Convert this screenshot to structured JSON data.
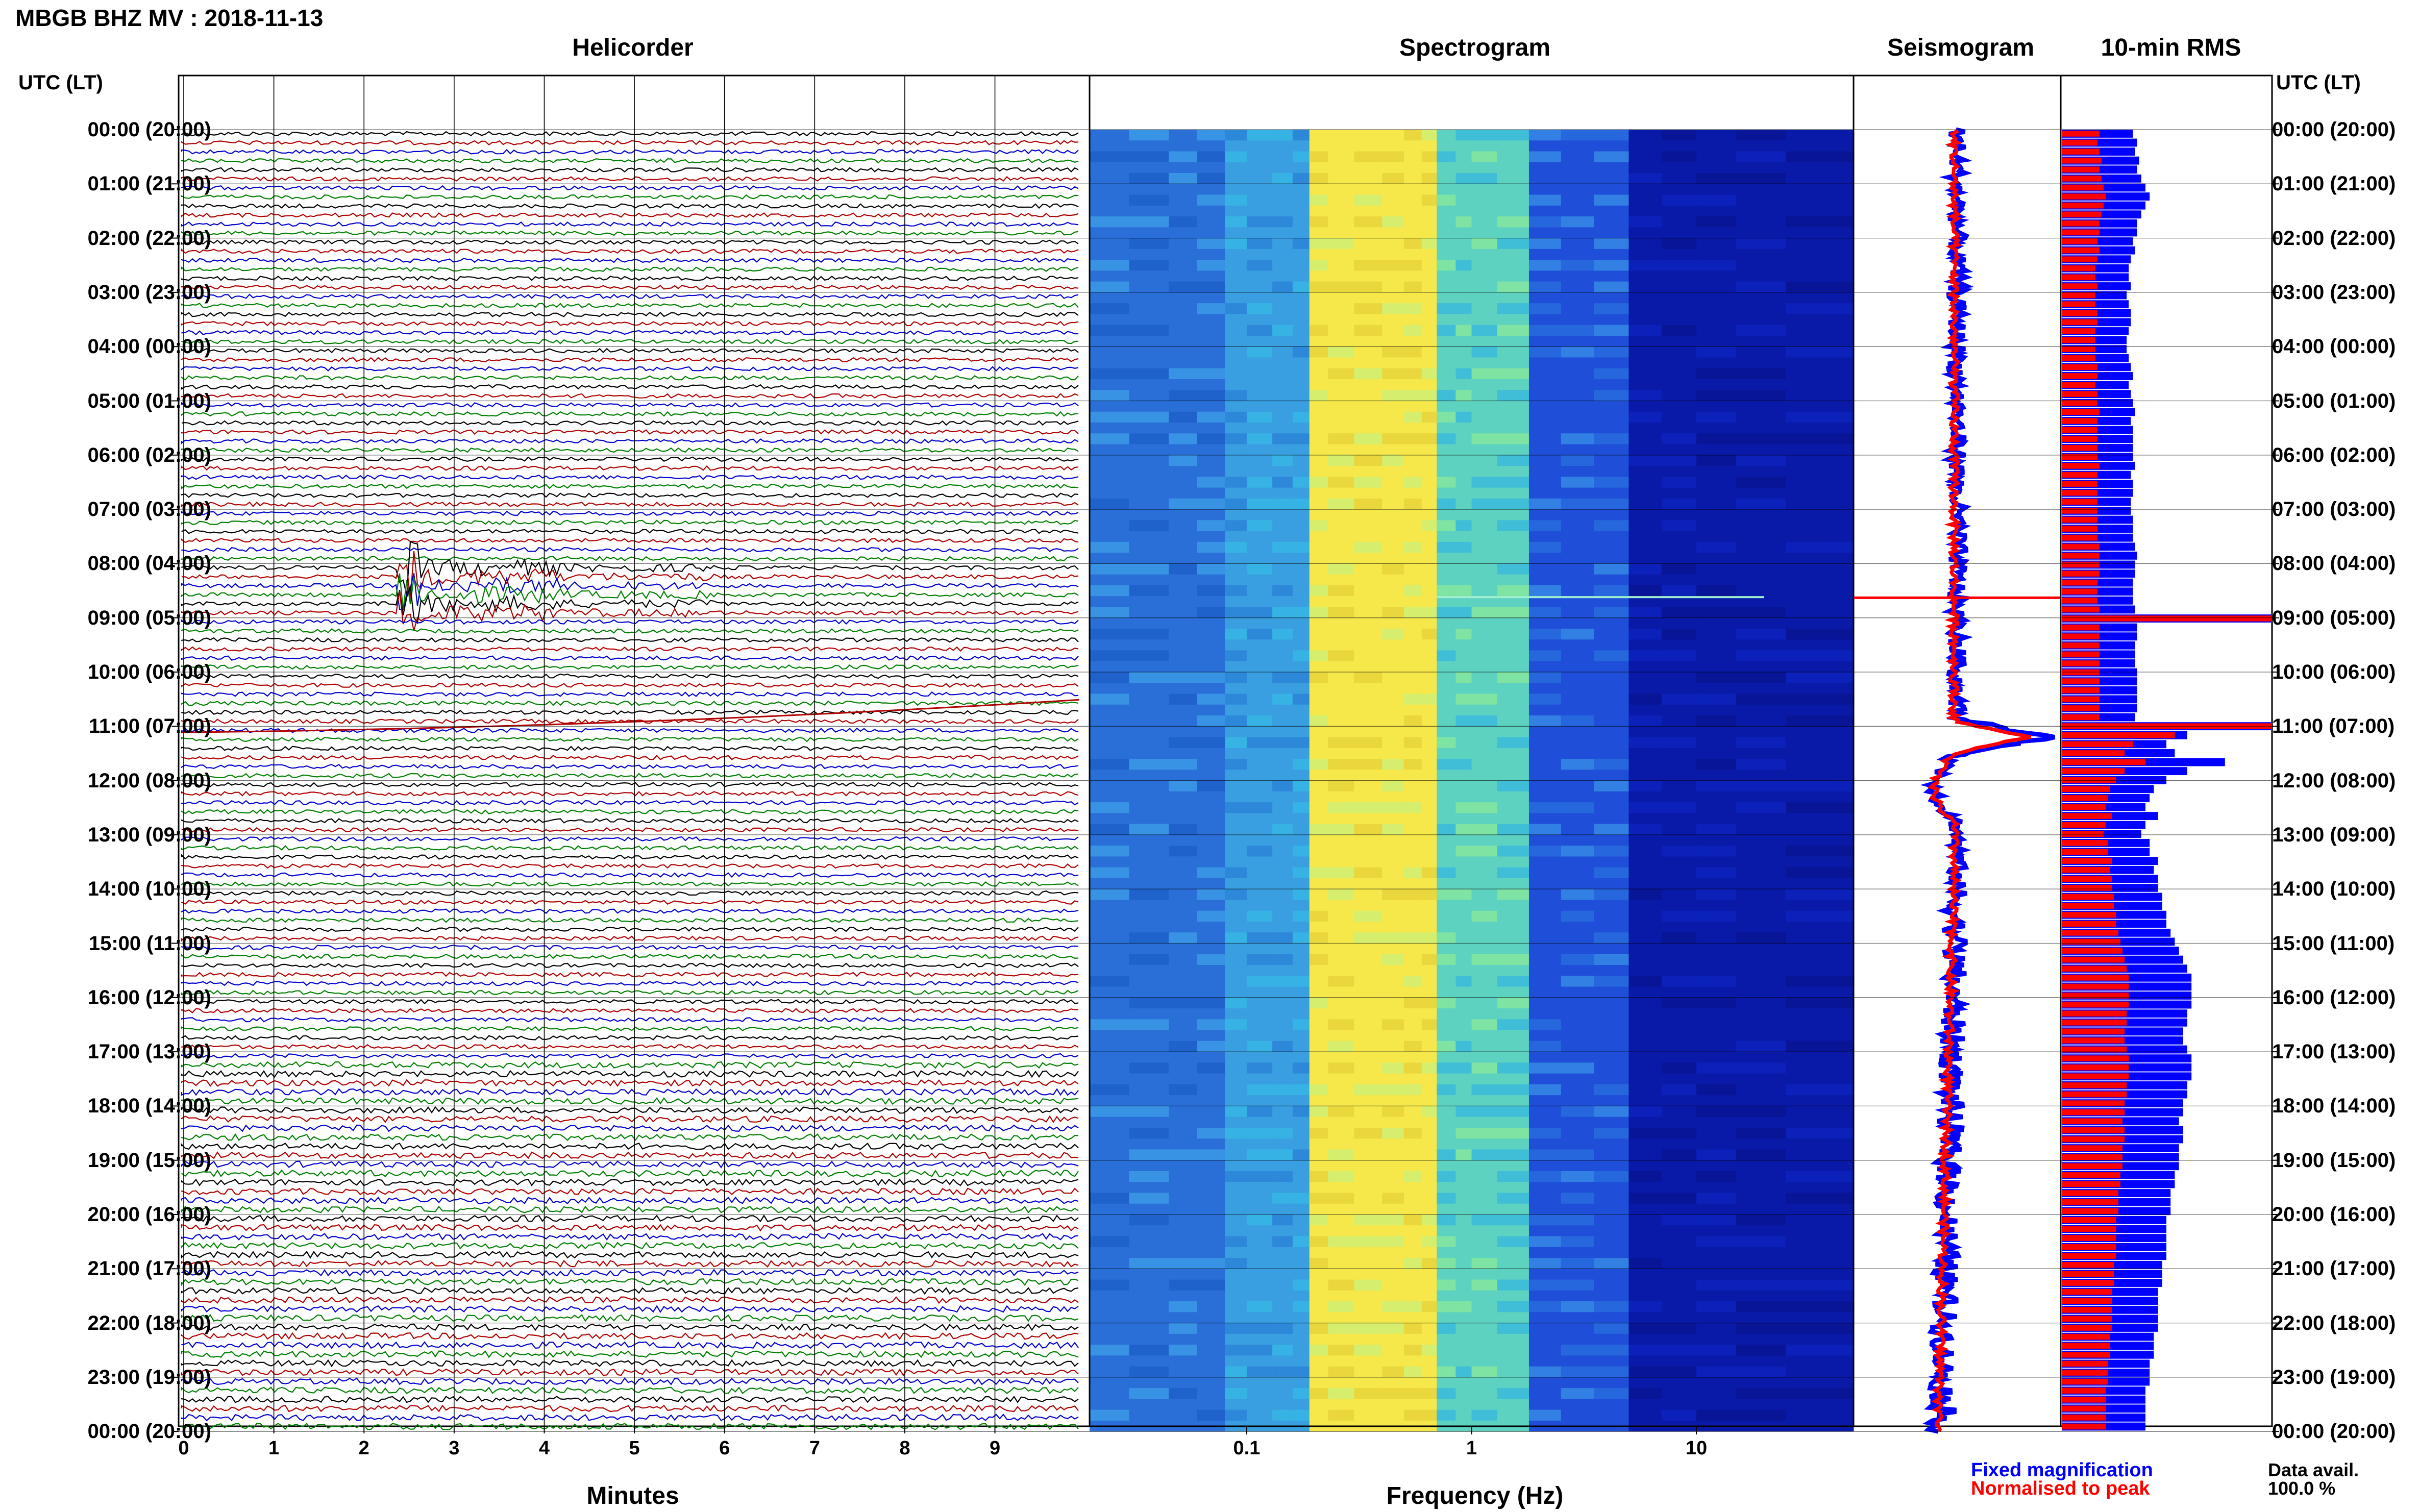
{
  "header": {
    "title": "MBGB BHZ MV : 2018-11-13"
  },
  "panels": {
    "helicorder": "Helicorder",
    "spectrogram": "Spectrogram",
    "seismogram": "Seismogram",
    "rms": "10-min RMS"
  },
  "axis": {
    "utc_label_left": "UTC (LT)",
    "utc_label_right": "UTC (LT)",
    "hours": [
      "00:00 (20:00)",
      "01:00 (21:00)",
      "02:00 (22:00)",
      "03:00 (23:00)",
      "04:00 (00:00)",
      "05:00 (01:00)",
      "06:00 (02:00)",
      "07:00 (03:00)",
      "08:00 (04:00)",
      "09:00 (05:00)",
      "10:00 (06:00)",
      "11:00 (07:00)",
      "12:00 (08:00)",
      "13:00 (09:00)",
      "14:00 (10:00)",
      "15:00 (11:00)",
      "16:00 (12:00)",
      "17:00 (13:00)",
      "18:00 (14:00)",
      "19:00 (15:00)",
      "20:00 (16:00)",
      "21:00 (17:00)",
      "22:00 (18:00)",
      "23:00 (19:00)",
      "00:00 (20:00)"
    ],
    "minutes_label": "Minutes",
    "minute_ticks": [
      "0",
      "1",
      "2",
      "3",
      "4",
      "5",
      "6",
      "7",
      "8",
      "9"
    ],
    "frequency_label": "Frequency (Hz)",
    "freq_ticks": [
      "0.1",
      "1",
      "10"
    ]
  },
  "legend": {
    "fixed": "Fixed magnification",
    "normalised": "Normalised to peak",
    "data_avail": "Data avail.",
    "data_avail_value": "100.0 %"
  },
  "colors": {
    "trace_cycle": [
      "#000000",
      "#b00000",
      "#0000d0",
      "#008000"
    ],
    "fixed": "#0000ff",
    "normalised": "#ff0000",
    "spectrogram_low": "#00008b",
    "spectrogram_high": "#ffff00"
  },
  "chart_data": {
    "type": "helicorder",
    "hours_utc": [
      0,
      1,
      2,
      3,
      4,
      5,
      6,
      7,
      8,
      9,
      10,
      11,
      12,
      13,
      14,
      15,
      16,
      17,
      18,
      19,
      20,
      21,
      22,
      23,
      24
    ],
    "minutes_range": [
      0,
      10
    ],
    "frequency_range_hz": [
      0.02,
      50
    ],
    "frequency_scale": "log",
    "events": [
      {
        "name": "regional earthquake",
        "hour": 8.0,
        "minute": 2.5
      },
      {
        "name": "long-period drift",
        "hour": 10.9,
        "minute": 0
      }
    ],
    "rms_fixed": [
      34,
      36,
      35,
      37,
      36,
      38,
      40,
      42,
      40,
      38,
      36,
      36,
      34,
      35,
      33,
      32,
      32,
      33,
      31,
      32,
      33,
      33,
      32,
      31,
      31,
      32,
      33,
      34,
      32,
      33,
      34,
      35,
      33,
      34,
      34,
      34,
      34,
      35,
      33,
      34,
      34,
      33,
      33,
      34,
      34,
      34,
      35,
      36,
      35,
      35,
      34,
      34,
      34,
      35,
      100,
      36,
      36,
      35,
      35,
      35,
      36,
      36,
      36,
      36,
      36,
      35,
      100,
      60,
      50,
      54,
      78,
      60,
      50,
      44,
      42,
      40,
      46,
      40,
      38,
      42,
      42,
      46,
      44,
      46,
      46,
      48,
      48,
      50,
      50,
      52,
      54,
      56,
      58,
      60,
      62,
      62,
      62,
      62,
      60,
      60,
      58,
      58,
      60,
      62,
      62,
      62,
      60,
      60,
      58,
      58,
      56,
      58,
      58,
      56,
      56,
      56,
      54,
      54,
      52,
      52,
      52,
      50,
      50,
      50,
      50,
      50,
      48,
      48,
      48,
      46,
      46,
      46,
      46,
      46,
      44,
      44,
      44,
      42,
      42,
      42,
      40,
      40,
      40,
      40,
      40
    ],
    "rms_normalised": [
      18,
      17,
      18,
      19,
      18,
      19,
      20,
      21,
      20,
      19,
      18,
      18,
      17,
      18,
      17,
      16,
      16,
      17,
      16,
      16,
      17,
      17,
      16,
      16,
      16,
      16,
      17,
      17,
      16,
      17,
      17,
      18,
      17,
      17,
      17,
      17,
      17,
      18,
      17,
      17,
      17,
      17,
      17,
      17,
      17,
      17,
      18,
      18,
      18,
      18,
      17,
      17,
      17,
      18,
      100,
      18,
      18,
      18,
      18,
      18,
      18,
      18,
      18,
      18,
      18,
      18,
      100,
      54,
      34,
      30,
      40,
      30,
      26,
      23,
      22,
      21,
      24,
      21,
      20,
      22,
      22,
      24,
      23,
      24,
      24,
      25,
      25,
      26,
      26,
      27,
      28,
      29,
      30,
      31,
      32,
      32,
      32,
      32,
      31,
      31,
      30,
      30,
      31,
      32,
      32,
      32,
      31,
      31,
      30,
      30,
      29,
      30,
      30,
      29,
      29,
      29,
      28,
      28,
      27,
      27,
      27,
      26,
      26,
      26,
      26,
      26,
      25,
      25,
      25,
      24,
      24,
      24,
      24,
      24,
      23,
      23,
      23,
      22,
      22,
      22,
      21,
      21,
      21,
      21,
      21
    ]
  }
}
